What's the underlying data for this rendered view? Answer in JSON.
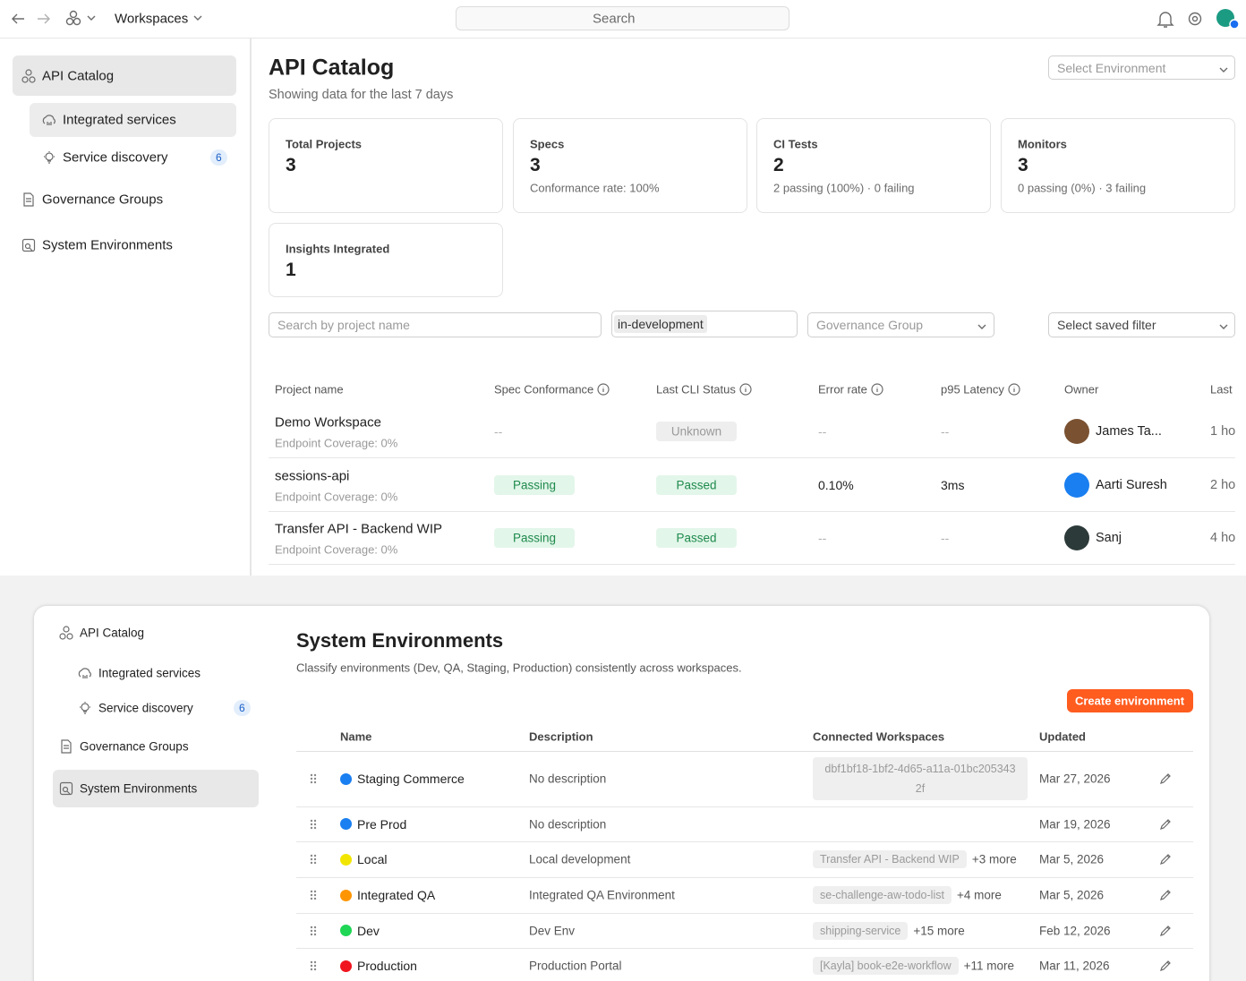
{
  "topbar": {
    "workspaces": "Workspaces",
    "search": "Search"
  },
  "sidebar": {
    "items": [
      {
        "label": "API Catalog"
      },
      {
        "label": "Integrated services"
      },
      {
        "label": "Service discovery",
        "badge": "6"
      },
      {
        "label": "Governance Groups"
      },
      {
        "label": "System Environments"
      }
    ]
  },
  "catalog": {
    "title": "API Catalog",
    "subtitle": "Showing data for the last 7 days",
    "environment_select": "Select Environment",
    "cards": [
      {
        "label": "Total Projects",
        "value": "3"
      },
      {
        "label": "Specs",
        "value": "3",
        "detail": "Conformance rate: 100%"
      },
      {
        "label": "CI Tests",
        "value": "2",
        "detail": "2 passing (100%) · 0 failing"
      },
      {
        "label": "Monitors",
        "value": "3",
        "detail": "0 passing (0%) · 3 failing"
      },
      {
        "label": "Insights Integrated",
        "value": "1"
      }
    ],
    "filters": {
      "search": "Search by project name",
      "tag": "in-development",
      "governance": "Governance Group",
      "saved_filter": "Select saved filter"
    },
    "table": {
      "columns": [
        "Project name",
        "Spec Conformance",
        "Last CLI Status",
        "Error rate",
        "p95 Latency",
        "Owner",
        "Last"
      ],
      "rows": [
        {
          "name": "Demo Workspace",
          "coverage": "Endpoint Coverage: 0%",
          "spec": "--",
          "cli": {
            "text": "Unknown",
            "tone": "gray"
          },
          "error_rate": "--",
          "latency": "--",
          "owner": "James Ta...",
          "owner_color": "#7a5232",
          "last": "1 ho"
        },
        {
          "name": "sessions-api",
          "coverage": "Endpoint Coverage: 0%",
          "spec": {
            "text": "Passing",
            "tone": "green"
          },
          "cli": {
            "text": "Passed",
            "tone": "green"
          },
          "error_rate": "0.10%",
          "latency": "3ms",
          "owner": "Aarti Suresh",
          "owner_color": "#1a7ff0",
          "last": "2 ho"
        },
        {
          "name": "Transfer API - Backend WIP",
          "coverage": "Endpoint Coverage: 0%",
          "spec": {
            "text": "Passing",
            "tone": "green"
          },
          "cli": {
            "text": "Passed",
            "tone": "green"
          },
          "error_rate": "--",
          "latency": "--",
          "owner": "Sanj",
          "owner_color": "#2d3a3a",
          "last": "4 ho"
        }
      ]
    }
  },
  "environments": {
    "sidebar": {
      "items": [
        {
          "label": "API Catalog"
        },
        {
          "label": "Integrated services"
        },
        {
          "label": "Service discovery",
          "badge": "6"
        },
        {
          "label": "Governance Groups"
        },
        {
          "label": "System Environments"
        }
      ]
    },
    "title": "System Environments",
    "subtitle": "Classify environments (Dev, QA, Staging, Production) consistently across workspaces.",
    "create_button": "Create environment",
    "columns": [
      "Name",
      "Description",
      "Connected Workspaces",
      "Updated"
    ],
    "rows": [
      {
        "name": "Staging Commerce",
        "color": "#1a7ff0",
        "description": "No description",
        "workspace": "dbf1bf18-1bf2-4d65-a11a-01bc2053432f",
        "updated": "Mar 27, 2026"
      },
      {
        "name": "Pre Prod",
        "color": "#1a7ff0",
        "description": "No description",
        "updated": "Mar 19, 2026"
      },
      {
        "name": "Local",
        "color": "#f2e600",
        "description": "Local development",
        "workspace": "Transfer API - Backend WIP",
        "more": "+3 more",
        "updated": "Mar 5, 2026"
      },
      {
        "name": "Integrated QA",
        "color": "#ff9500",
        "description": "Integrated QA Environment",
        "workspace": "se-challenge-aw-todo-list",
        "more": "+4 more",
        "updated": "Mar 5, 2026"
      },
      {
        "name": "Dev",
        "color": "#1fd655",
        "description": "Dev Env",
        "workspace": "shipping-service",
        "more": "+15 more",
        "updated": "Feb 12, 2026"
      },
      {
        "name": "Production",
        "color": "#f0141e",
        "description": "Production Portal",
        "workspace": "[Kayla] book-e2e-workflow",
        "more": "+11 more",
        "updated": "Mar 11, 2026"
      }
    ]
  }
}
